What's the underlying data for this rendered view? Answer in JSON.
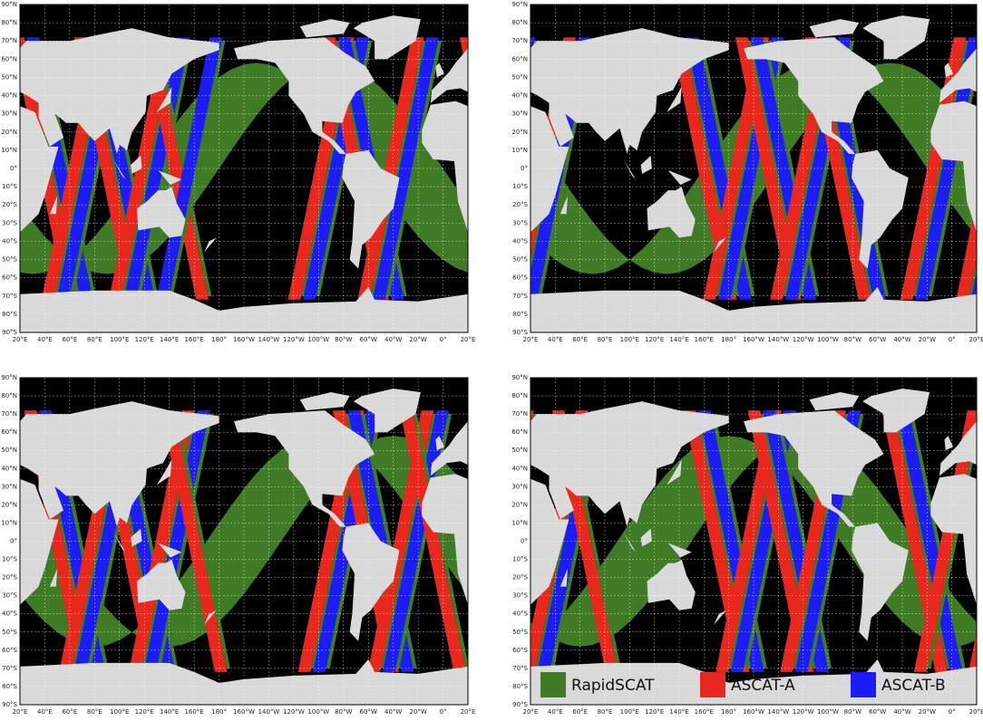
{
  "panels": [
    {
      "lat_labels": [
        "90°N",
        "80°N",
        "70°N",
        "60°N",
        "50°N",
        "40°N",
        "30°N",
        "20°N",
        "10°N",
        "0°",
        "10°S",
        "20°S",
        "30°S",
        "40°S",
        "50°S",
        "60°S",
        "70°S",
        "80°S",
        "90°S"
      ],
      "lon_labels": [
        "20°E",
        "40°E",
        "60°E",
        "80°E",
        "100°E",
        "120°E",
        "140°E",
        "160°E",
        "180°",
        "160°W",
        "140°W",
        "120°W",
        "100°W",
        "80°W",
        "60°W",
        "40°W",
        "20°W",
        "0°",
        "20°E"
      ]
    },
    {
      "lat_labels": [
        "90°N",
        "80°N",
        "70°N",
        "60°N",
        "50°N",
        "40°N",
        "30°N",
        "20°N",
        "10°N",
        "0°",
        "10°S",
        "20°S",
        "30°S",
        "40°S",
        "50°S",
        "60°S",
        "70°S",
        "80°S",
        "90°S"
      ],
      "lon_labels": [
        "20°E",
        "40°E",
        "60°E",
        "80°E",
        "100°E",
        "120°E",
        "140°E",
        "160°E",
        "180°",
        "160°W",
        "140°W",
        "120°W",
        "100°W",
        "80°W",
        "60°W",
        "40°W",
        "20°W",
        "0°",
        "20°E"
      ]
    },
    {
      "lat_labels": [
        "90°N",
        "80°N",
        "70°N",
        "60°N",
        "50°N",
        "40°N",
        "30°N",
        "20°N",
        "10°N",
        "0°",
        "10°S",
        "20°S",
        "30°S",
        "40°S",
        "50°S",
        "60°S",
        "70°S",
        "80°S",
        "90°S"
      ],
      "lon_labels": [
        "20°E",
        "40°E",
        "60°E",
        "80°E",
        "100°E",
        "120°E",
        "140°E",
        "160°E",
        "180°",
        "160°W",
        "140°W",
        "120°W",
        "100°W",
        "80°W",
        "60°W",
        "40°W",
        "20°W",
        "0°",
        "20°E"
      ]
    },
    {
      "lat_labels": [
        "90°N",
        "80°N",
        "70°N",
        "60°N",
        "50°N",
        "40°N",
        "30°N",
        "20°N",
        "10°N",
        "0°",
        "10°S",
        "20°S",
        "30°S",
        "40°S",
        "50°S",
        "60°S",
        "70°S",
        "80°S",
        "90°S"
      ],
      "lon_labels": [
        "20°E",
        "40°E",
        "60°E",
        "80°E",
        "100°E",
        "120°E",
        "140°E",
        "160°E",
        "180°",
        "160°W",
        "140°W",
        "120°W",
        "100°W",
        "80°W",
        "60°W",
        "40°W",
        "20°W",
        "0°",
        "20°E"
      ]
    }
  ],
  "legend": [
    {
      "label": "RapidSCAT",
      "color": "#3f7a25"
    },
    {
      "label": "ASCAT-A",
      "color": "#e8281c"
    },
    {
      "label": "ASCAT-B",
      "color": "#1c1cf5"
    }
  ]
}
